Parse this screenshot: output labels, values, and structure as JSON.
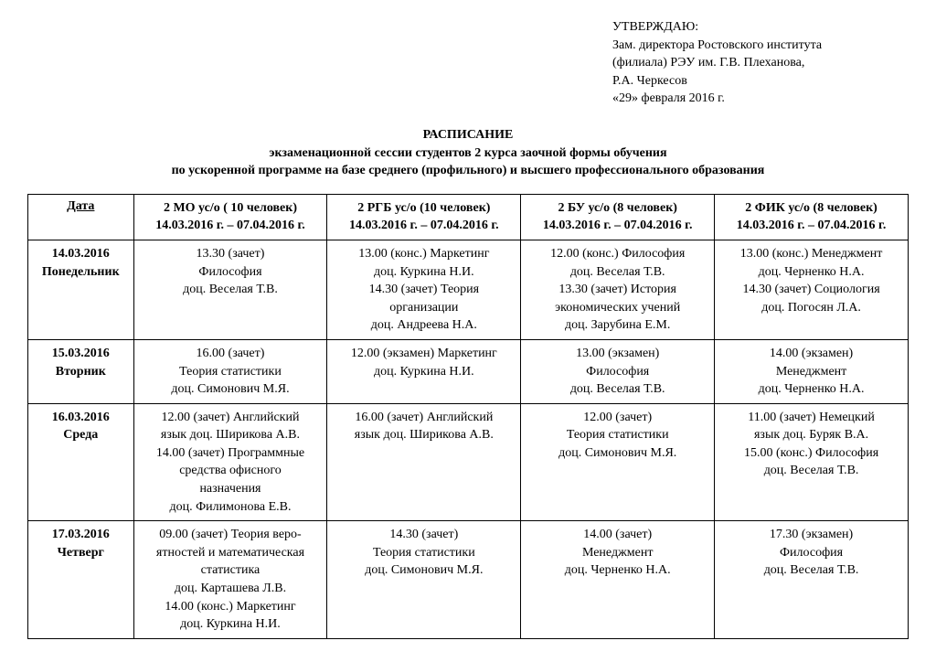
{
  "approval": {
    "line1": "УТВЕРЖДАЮ:",
    "line2": "Зам. директора Ростовского института",
    "line3": "(филиала) РЭУ им. Г.В. Плеханова,",
    "line4": " Р.А. Черкесов",
    "line5": "«29» февраля 2016 г."
  },
  "title": {
    "line1": "РАСПИСАНИЕ",
    "line2": "экзаменационной сессии студентов 2 курса заочной формы обучения",
    "line3": "по ускоренной программе на базе среднего (профильного) и высшего профессионального образования"
  },
  "header": {
    "date": "Дата",
    "g1": {
      "name": "2 МО ус/о ( 10 человек)",
      "range": "14.03.2016 г. – 07.04.2016 г."
    },
    "g2": {
      "name": "2 РГБ ус/о  (10 человек)",
      "range": "14.03.2016 г. – 07.04.2016 г."
    },
    "g3": {
      "name": "2 БУ ус/о  (8 человек)",
      "range": "14.03.2016 г. – 07.04.2016 г."
    },
    "g4": {
      "name": "2  ФИК ус/о  (8 человек)",
      "range": "14.03.2016 г. – 07.04.2016 г."
    }
  },
  "rows": {
    "r1": {
      "date1": "14.03.2016",
      "date2": "Понедельник",
      "c1": {
        "l1": "13.30 (зачет)",
        "l2": "Философия",
        "l3": "доц. Веселая Т.В."
      },
      "c2": {
        "l1": "13.00 (конс.) Маркетинг",
        "l2": "доц. Куркина Н.И.",
        "l3": "14.30 (зачет) Теория",
        "l4": "организации",
        "l5": "доц. Андреева Н.А."
      },
      "c3": {
        "l1": "12.00 (конс.) Философия",
        "l2": "доц. Веселая Т.В.",
        "l3": "13.30 (зачет) История",
        "l4": "экономических учений",
        "l5": "доц. Зарубина Е.М."
      },
      "c4": {
        "l1": "13.00 (конс.) Менеджмент",
        "l2": "доц. Черненко Н.А.",
        "l3": "14.30 (зачет) Социология",
        "l4": "доц. Погосян Л.А."
      }
    },
    "r2": {
      "date1": "15.03.2016",
      "date2": "Вторник",
      "c1": {
        "l1": "16.00 (зачет)",
        "l2": "Теория статистики",
        "l3": "доц. Симонович М.Я."
      },
      "c2": {
        "l1": "12.00 (экзамен) Маркетинг",
        "l2": "доц. Куркина Н.И."
      },
      "c3": {
        "l1": "13.00 (экзамен)",
        "l2": "Философия",
        "l3": "доц. Веселая Т.В."
      },
      "c4": {
        "l1": "14.00 (экзамен)",
        "l2": "Менеджмент",
        "l3": "доц. Черненко Н.А."
      }
    },
    "r3": {
      "date1": "16.03.2016",
      "date2": "Среда",
      "c1": {
        "l1": "12.00 (зачет) Английский",
        "l2": "язык   доц. Ширикова А.В.",
        "l3": "14.00 (зачет) Программные",
        "l4": "средства офисного",
        "l5": "назначения",
        "l6": "доц. Филимонова Е.В."
      },
      "c2": {
        "l1": "16.00 (зачет) Английский",
        "l2": "язык   доц. Ширикова А.В."
      },
      "c3": {
        "l1": "12.00 (зачет)",
        "l2": "Теория статистики",
        "l3": "доц. Симонович М.Я."
      },
      "c4": {
        "l1": "11.00 (зачет) Немецкий",
        "l2": "язык доц. Буряк В.А.",
        "l3": "15.00 (конс.) Философия",
        "l4": "доц. Веселая Т.В."
      }
    },
    "r4": {
      "date1": "17.03.2016",
      "date2": "Четверг",
      "c1": {
        "l1": "09.00 (зачет) Теория веро-",
        "l2": "ятностей и математическая",
        "l3": "статистика",
        "l4": "доц. Карташева Л.В.",
        "l5": "14.00 (конс.) Маркетинг",
        "l6": "доц. Куркина Н.И."
      },
      "c2": {
        "l1": "14.30 (зачет)",
        "l2": "Теория статистики",
        "l3": "доц. Симонович М.Я."
      },
      "c3": {
        "l1": "14.00 (зачет)",
        "l2": "Менеджмент",
        "l3": "доц. Черненко Н.А."
      },
      "c4": {
        "l1": "17.30 (экзамен)",
        "l2": "Философия",
        "l3": "доц. Веселая Т.В."
      }
    }
  }
}
